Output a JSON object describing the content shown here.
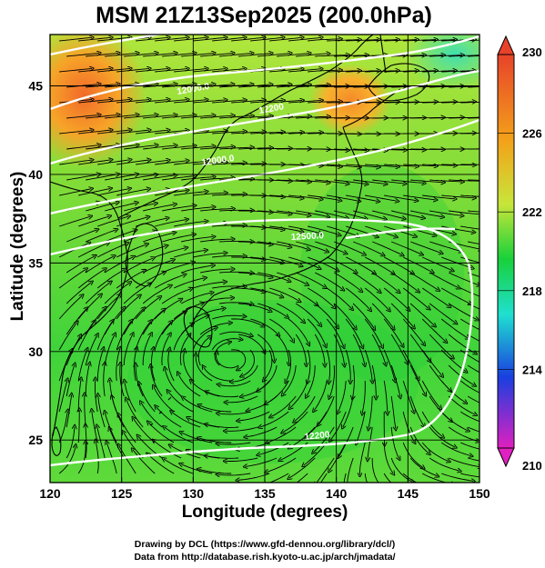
{
  "title": "MSM 21Z13Sep2025 (200.0hPa)",
  "xaxis": {
    "label": "Longitude (degrees)",
    "ticks": [
      "120",
      "125",
      "130",
      "135",
      "140",
      "145",
      "150"
    ]
  },
  "yaxis": {
    "label": "Latitude  (degrees)",
    "ticks": [
      "25",
      "30",
      "35",
      "40",
      "45"
    ]
  },
  "colorbar": {
    "ticks": [
      "230",
      "226",
      "222",
      "218",
      "214",
      "210"
    ],
    "colors": {
      "top": "#e8432a",
      "upper": "#f3a21a",
      "mid": "#7fe03a",
      "green": "#18d13a",
      "cyan": "#1fe0d0",
      "blue": "#1a3fe0",
      "bottom": "#e020c0"
    }
  },
  "contour_labels": [
    "12000.0",
    "12000.0",
    "12500.0",
    "12200",
    "12200"
  ],
  "credits": {
    "line1": "Drawing by DCL (https://www.gfd-dennou.org/library/dcl/)",
    "line2": "Data from http://database.rish.kyoto-u.ac.jp/arch/jmadata/"
  }
}
